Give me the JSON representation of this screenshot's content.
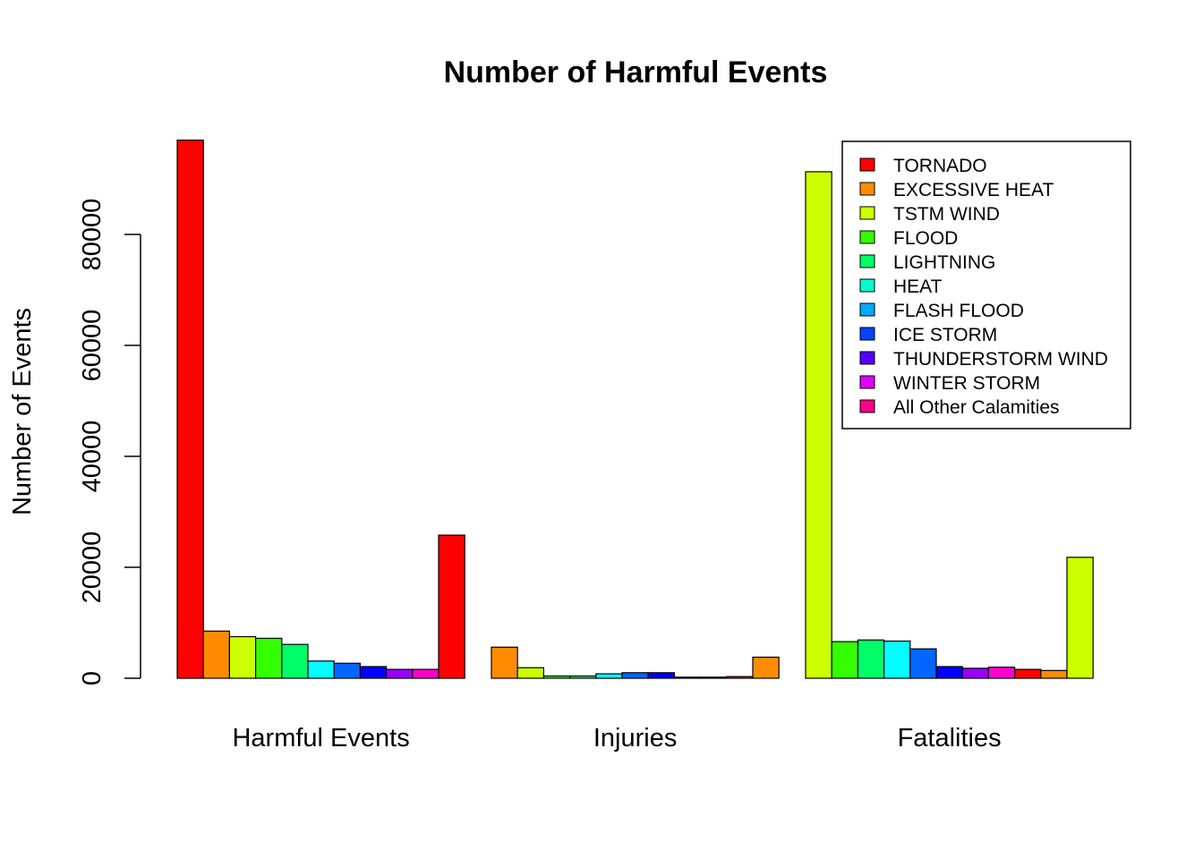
{
  "chart_data": {
    "type": "bar",
    "title": "Number of Harmful Events",
    "ylabel": "Number of Events",
    "xlabel": "",
    "ylim": [
      0,
      100000
    ],
    "yticks": [
      0,
      20000,
      40000,
      60000,
      80000
    ],
    "ytick_labels": [
      "0",
      "20000",
      "40000",
      "60000",
      "80000"
    ],
    "groups": [
      {
        "label": "Harmful Events",
        "values": [
          97000,
          8500,
          7500,
          7200,
          6100,
          3100,
          2700,
          2100,
          1600,
          1600,
          25800
        ],
        "colors": [
          "#FF0000",
          "#FF8C00",
          "#CCFF00",
          "#33FF00",
          "#00FF66",
          "#00FFFF",
          "#0066FF",
          "#0000FF",
          "#9900FF",
          "#FF00CC",
          "#FF0000"
        ]
      },
      {
        "label": "Injuries",
        "values": [
          5600,
          1900,
          400,
          400,
          800,
          1000,
          1000,
          200,
          200,
          300,
          3800
        ],
        "colors": [
          "#FF8C00",
          "#CCFF00",
          "#33FF00",
          "#00FF66",
          "#00FFFF",
          "#0066FF",
          "#0000FF",
          "#9900FF",
          "#FF00CC",
          "#FF0000",
          "#FF8C00"
        ]
      },
      {
        "label": "Fatalities",
        "values": [
          91300,
          6600,
          6900,
          6700,
          5300,
          2100,
          1800,
          2000,
          1600,
          1400,
          21800
        ],
        "colors": [
          "#CCFF00",
          "#33FF00",
          "#00FF66",
          "#00FFFF",
          "#0066FF",
          "#0000FF",
          "#9900FF",
          "#FF00CC",
          "#FF0000",
          "#FF8C00",
          "#CCFF00"
        ]
      }
    ],
    "legend": {
      "placement": "top-right",
      "entries": [
        {
          "name": "TORNADO",
          "color": "#FF0000"
        },
        {
          "name": "EXCESSIVE HEAT",
          "color": "#FF8C00"
        },
        {
          "name": "TSTM WIND",
          "color": "#CCFF00"
        },
        {
          "name": "FLOOD",
          "color": "#33FF00"
        },
        {
          "name": "LIGHTNING",
          "color": "#00FF66"
        },
        {
          "name": "HEAT",
          "color": "#00FFCC"
        },
        {
          "name": "FLASH FLOOD",
          "color": "#00AAFF"
        },
        {
          "name": "ICE STORM",
          "color": "#0044FF"
        },
        {
          "name": "THUNDERSTORM WIND",
          "color": "#5500FF"
        },
        {
          "name": "WINTER STORM",
          "color": "#DD00FF"
        },
        {
          "name": "All Other Calamities",
          "color": "#FF0088"
        }
      ]
    },
    "grid": false
  }
}
